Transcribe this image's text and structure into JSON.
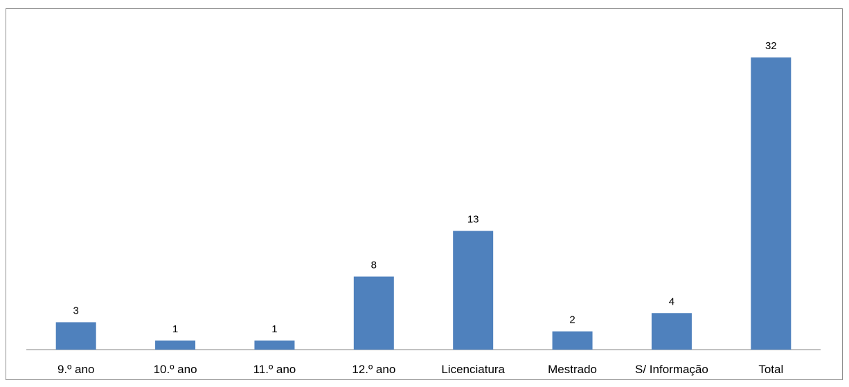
{
  "chart_data": {
    "type": "bar",
    "categories": [
      "9.º ano",
      "10.º ano",
      "11.º ano",
      "12.º ano",
      "Licenciatura",
      "Mestrado",
      "S/ Informação",
      "Total"
    ],
    "values": [
      3,
      1,
      1,
      8,
      13,
      2,
      4,
      32
    ],
    "title": "",
    "xlabel": "",
    "ylabel": "",
    "ylim": [
      0,
      34
    ],
    "grid": false,
    "legend": "none",
    "data_labels": true,
    "bar_color": "#4f81bd",
    "axis_color": "#868686",
    "frame_color": "#8c8c8c"
  }
}
